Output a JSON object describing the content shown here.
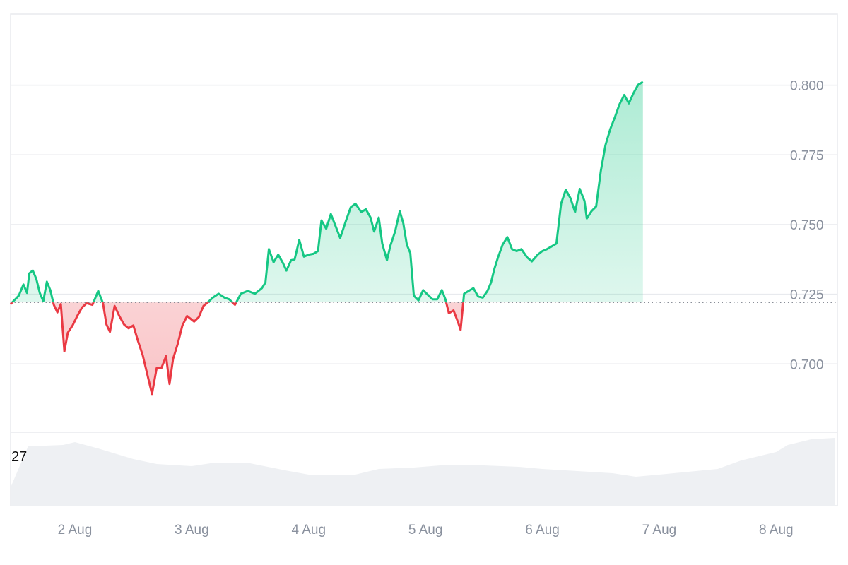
{
  "chart_data": {
    "type": "area",
    "title": "",
    "xlabel": "",
    "ylabel": "",
    "x_ticks": [
      "2 Aug",
      "3 Aug",
      "4 Aug",
      "5 Aug",
      "6 Aug",
      "7 Aug",
      "8 Aug"
    ],
    "y_ticks": [
      "0.700",
      "0.725",
      "0.750",
      "0.775",
      "0.800"
    ],
    "ylim": [
      0.6755,
      0.8255
    ],
    "xlim_days": [
      1.45,
      8.5
    ],
    "baseline": 0.7221,
    "grid": true,
    "legend": "none",
    "volume_label": "27",
    "colors": {
      "up_line": "#16c784",
      "up_fill": "#16c784",
      "down_line": "#ea3943",
      "down_fill": "#ea3943",
      "grid": "#e8eaee",
      "baseline": "#7a7f8a",
      "volume": "#eef0f3"
    },
    "series": [
      {
        "points": [
          [
            1.45,
            0.7215
          ],
          [
            1.52,
            0.7245
          ],
          [
            1.56,
            0.7285
          ],
          [
            1.59,
            0.7255
          ],
          [
            1.61,
            0.7325
          ],
          [
            1.64,
            0.7335
          ],
          [
            1.67,
            0.7305
          ],
          [
            1.7,
            0.7255
          ],
          [
            1.73,
            0.7225
          ],
          [
            1.76,
            0.7295
          ],
          [
            1.79,
            0.7265
          ],
          [
            1.82,
            0.7212
          ],
          [
            1.85,
            0.7185
          ],
          [
            1.88,
            0.7215
          ],
          [
            1.91,
            0.7045
          ],
          [
            1.94,
            0.7112
          ],
          [
            1.98,
            0.7138
          ],
          [
            2.02,
            0.7172
          ],
          [
            2.06,
            0.7202
          ],
          [
            2.1,
            0.7218
          ],
          [
            2.15,
            0.7212
          ],
          [
            2.2,
            0.7262
          ],
          [
            2.24,
            0.7218
          ],
          [
            2.27,
            0.7142
          ],
          [
            2.3,
            0.7115
          ],
          [
            2.34,
            0.7208
          ],
          [
            2.38,
            0.7172
          ],
          [
            2.42,
            0.7142
          ],
          [
            2.46,
            0.7128
          ],
          [
            2.5,
            0.7138
          ],
          [
            2.54,
            0.7082
          ],
          [
            2.58,
            0.7032
          ],
          [
            2.62,
            0.6962
          ],
          [
            2.66,
            0.6892
          ],
          [
            2.7,
            0.6985
          ],
          [
            2.74,
            0.6985
          ],
          [
            2.78,
            0.7028
          ],
          [
            2.81,
            0.6928
          ],
          [
            2.84,
            0.7018
          ],
          [
            2.88,
            0.7072
          ],
          [
            2.92,
            0.7138
          ],
          [
            2.96,
            0.7172
          ],
          [
            3.02,
            0.7152
          ],
          [
            3.06,
            0.7168
          ],
          [
            3.1,
            0.7208
          ],
          [
            3.14,
            0.7222
          ],
          [
            3.18,
            0.7238
          ],
          [
            3.23,
            0.7252
          ],
          [
            3.28,
            0.7238
          ],
          [
            3.32,
            0.7232
          ],
          [
            3.37,
            0.7212
          ],
          [
            3.42,
            0.7252
          ],
          [
            3.48,
            0.7262
          ],
          [
            3.54,
            0.7252
          ],
          [
            3.6,
            0.7272
          ],
          [
            3.63,
            0.7292
          ],
          [
            3.66,
            0.7412
          ],
          [
            3.7,
            0.7365
          ],
          [
            3.74,
            0.7392
          ],
          [
            3.78,
            0.7362
          ],
          [
            3.81,
            0.7335
          ],
          [
            3.85,
            0.7372
          ],
          [
            3.88,
            0.7375
          ],
          [
            3.92,
            0.7445
          ],
          [
            3.96,
            0.7385
          ],
          [
            4.0,
            0.7392
          ],
          [
            4.04,
            0.7395
          ],
          [
            4.08,
            0.7405
          ],
          [
            4.11,
            0.7515
          ],
          [
            4.15,
            0.7485
          ],
          [
            4.19,
            0.7538
          ],
          [
            4.23,
            0.7495
          ],
          [
            4.27,
            0.7452
          ],
          [
            4.32,
            0.7515
          ],
          [
            4.36,
            0.7562
          ],
          [
            4.4,
            0.7575
          ],
          [
            4.45,
            0.7545
          ],
          [
            4.49,
            0.7555
          ],
          [
            4.53,
            0.7525
          ],
          [
            4.56,
            0.7475
          ],
          [
            4.6,
            0.7525
          ],
          [
            4.63,
            0.7432
          ],
          [
            4.67,
            0.7372
          ],
          [
            4.7,
            0.7425
          ],
          [
            4.74,
            0.7475
          ],
          [
            4.78,
            0.7548
          ],
          [
            4.81,
            0.7505
          ],
          [
            4.84,
            0.7428
          ],
          [
            4.87,
            0.7398
          ],
          [
            4.9,
            0.7245
          ],
          [
            4.94,
            0.7228
          ],
          [
            4.98,
            0.7265
          ],
          [
            5.02,
            0.7248
          ],
          [
            5.06,
            0.7232
          ],
          [
            5.1,
            0.7232
          ],
          [
            5.14,
            0.7265
          ],
          [
            5.17,
            0.7232
          ],
          [
            5.2,
            0.7182
          ],
          [
            5.24,
            0.7192
          ],
          [
            5.28,
            0.7148
          ],
          [
            5.3,
            0.7122
          ],
          [
            5.33,
            0.7252
          ],
          [
            5.37,
            0.7262
          ],
          [
            5.41,
            0.7272
          ],
          [
            5.45,
            0.7242
          ],
          [
            5.49,
            0.7238
          ],
          [
            5.53,
            0.7262
          ],
          [
            5.56,
            0.7292
          ],
          [
            5.59,
            0.7342
          ],
          [
            5.62,
            0.7382
          ],
          [
            5.66,
            0.7428
          ],
          [
            5.7,
            0.7455
          ],
          [
            5.74,
            0.7412
          ],
          [
            5.78,
            0.7405
          ],
          [
            5.82,
            0.7412
          ],
          [
            5.87,
            0.7382
          ],
          [
            5.91,
            0.7368
          ],
          [
            5.96,
            0.7392
          ],
          [
            6.0,
            0.7405
          ],
          [
            6.04,
            0.7412
          ],
          [
            6.08,
            0.7422
          ],
          [
            6.12,
            0.7432
          ],
          [
            6.16,
            0.7575
          ],
          [
            6.2,
            0.7625
          ],
          [
            6.24,
            0.7595
          ],
          [
            6.28,
            0.7545
          ],
          [
            6.32,
            0.7628
          ],
          [
            6.36,
            0.7585
          ],
          [
            6.38,
            0.7522
          ],
          [
            6.42,
            0.7548
          ],
          [
            6.46,
            0.7565
          ],
          [
            6.5,
            0.7692
          ],
          [
            6.54,
            0.7785
          ],
          [
            6.58,
            0.7842
          ],
          [
            6.62,
            0.7885
          ],
          [
            6.66,
            0.7932
          ],
          [
            6.7,
            0.7965
          ],
          [
            6.74,
            0.7935
          ],
          [
            6.78,
            0.7972
          ],
          [
            6.82,
            0.8002
          ],
          [
            6.86,
            0.8012
          ]
        ]
      }
    ]
  }
}
